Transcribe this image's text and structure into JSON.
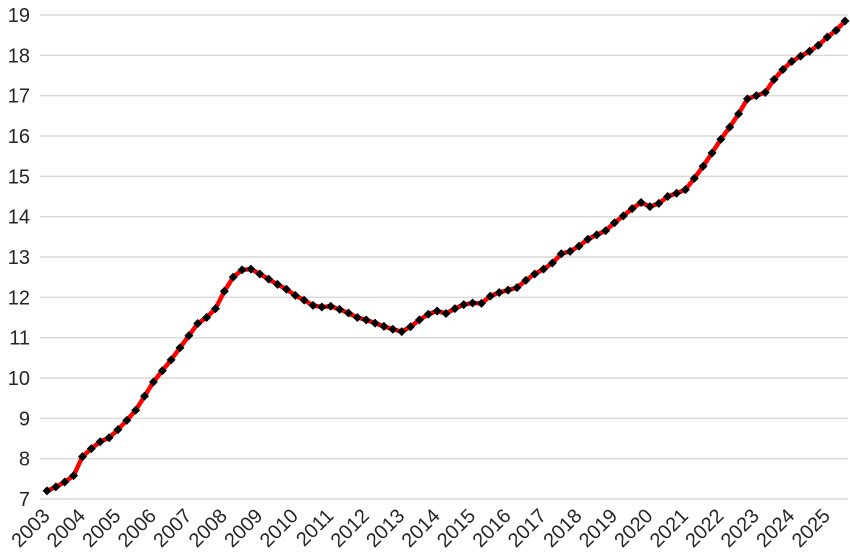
{
  "chart_data": {
    "type": "line",
    "title": "",
    "xlabel": "",
    "ylabel": "",
    "legend": false,
    "grid": true,
    "frequency": "quarterly",
    "start_period": "2003Q1",
    "end_period": "2025Q3",
    "x_tick_labels": [
      "2003",
      "2004",
      "2005",
      "2006",
      "2007",
      "2008",
      "2009",
      "2010",
      "2011",
      "2012",
      "2013",
      "2014",
      "2015",
      "2016",
      "2017",
      "2018",
      "2019",
      "2020",
      "2021",
      "2022",
      "2023",
      "2024",
      "2025"
    ],
    "y_ticks": [
      7,
      8,
      9,
      10,
      11,
      12,
      13,
      14,
      15,
      16,
      17,
      18,
      19
    ],
    "ylim": [
      7,
      19
    ],
    "values": [
      7.2,
      7.3,
      7.42,
      7.58,
      8.05,
      8.25,
      8.42,
      8.52,
      8.72,
      8.95,
      9.2,
      9.55,
      9.9,
      10.18,
      10.45,
      10.75,
      11.05,
      11.35,
      11.5,
      11.72,
      12.15,
      12.5,
      12.68,
      12.7,
      12.58,
      12.45,
      12.32,
      12.2,
      12.05,
      11.93,
      11.8,
      11.76,
      11.78,
      11.7,
      11.61,
      11.5,
      11.44,
      11.36,
      11.28,
      11.21,
      11.15,
      11.27,
      11.44,
      11.58,
      11.66,
      11.6,
      11.72,
      11.82,
      11.86,
      11.85,
      12.03,
      12.12,
      12.18,
      12.24,
      12.42,
      12.58,
      12.7,
      12.85,
      13.08,
      13.14,
      13.27,
      13.44,
      13.55,
      13.65,
      13.85,
      14.02,
      14.2,
      14.35,
      14.25,
      14.33,
      14.5,
      14.58,
      14.67,
      14.95,
      15.25,
      15.58,
      15.92,
      16.22,
      16.55,
      16.92,
      17.0,
      17.08,
      17.4,
      17.65,
      17.85,
      17.98,
      18.1,
      18.25,
      18.45,
      18.62,
      18.85
    ],
    "line_color": "#FF0000",
    "marker_color": "#000000",
    "marker_shape": "diamond",
    "gridline_color": "#D9D9D9",
    "axis_text_color": "#262626",
    "background_color": "#FFFFFF",
    "legend_position": "none"
  }
}
